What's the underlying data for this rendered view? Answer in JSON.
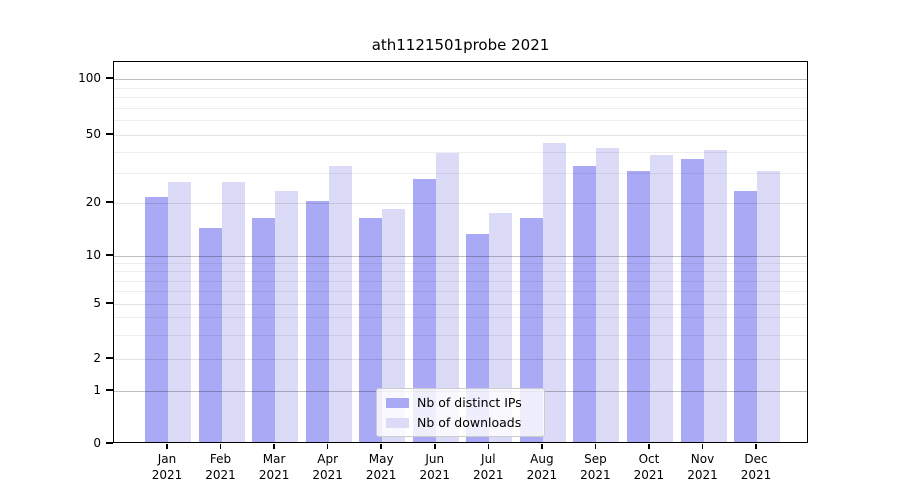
{
  "chart_data": {
    "type": "bar",
    "title": "ath1121501probe 2021",
    "categories": [
      "Jan",
      "Feb",
      "Mar",
      "Apr",
      "May",
      "Jun",
      "Jul",
      "Aug",
      "Sep",
      "Oct",
      "Nov",
      "Dec"
    ],
    "category_year": "2021",
    "series": [
      {
        "key": "distinct-ips",
        "name": "Nb of distinct IPs",
        "color": "#a9a9f6",
        "values": [
          21,
          14,
          16,
          20,
          16,
          27,
          13,
          16,
          32,
          30,
          35,
          23
        ]
      },
      {
        "key": "downloads",
        "name": "Nb of downloads",
        "color": "#dbdbf8",
        "values": [
          26,
          26,
          23,
          32,
          18,
          38,
          17,
          44,
          41,
          37,
          40,
          30
        ]
      }
    ],
    "y_axis": {
      "scale": "log",
      "major_ticks": [
        0,
        1,
        2,
        5,
        10,
        20,
        50,
        100
      ],
      "minor_ticks": [
        3,
        4,
        6,
        7,
        8,
        9,
        30,
        40,
        60,
        70,
        80,
        90
      ],
      "ylim": [
        0,
        125
      ]
    },
    "x_axis": {
      "label_format": "month over year"
    },
    "legend": {
      "position": "lower center"
    },
    "grid": true
  }
}
